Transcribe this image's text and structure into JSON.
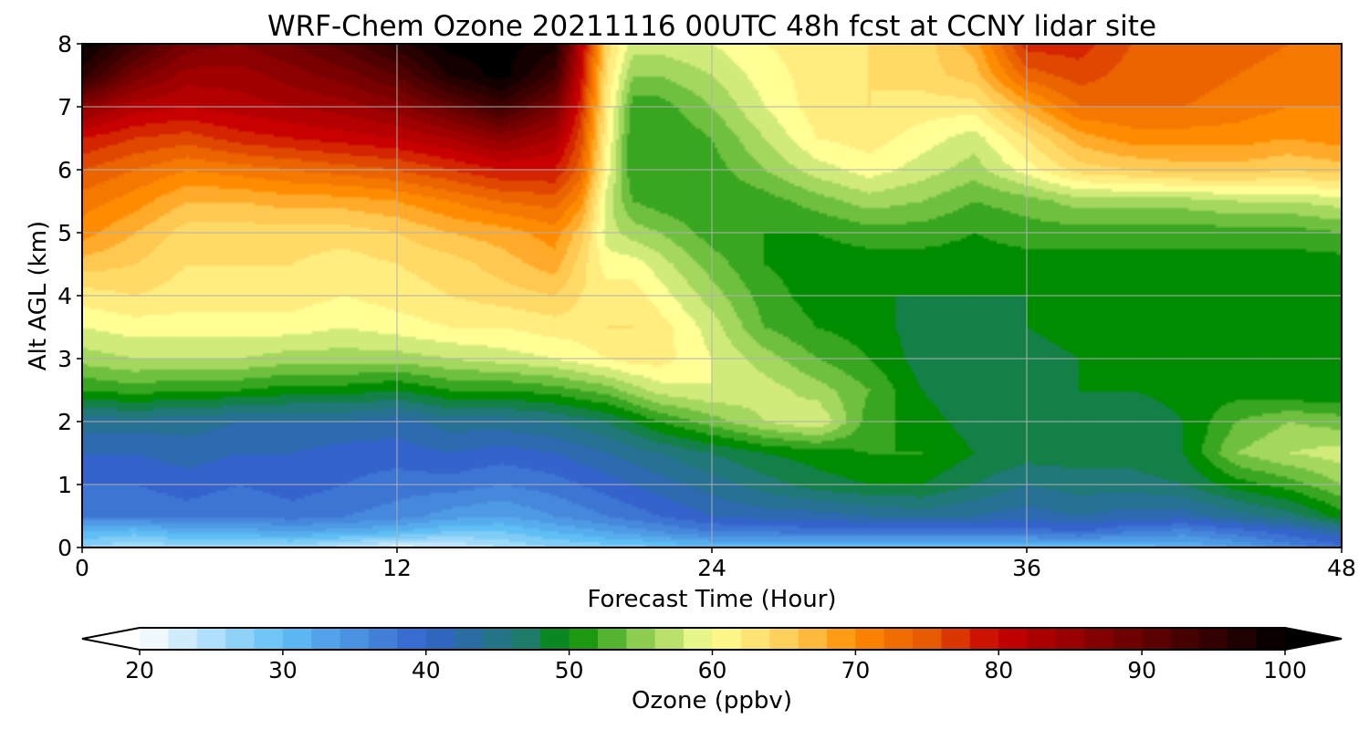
{
  "chart_data": {
    "type": "heatmap",
    "title": "WRF-Chem Ozone  20211116 00UTC 48h fcst at CCNY lidar site",
    "xlabel": "Forecast Time (Hour)",
    "ylabel": "Alt AGL (km)",
    "xlim": [
      0,
      48
    ],
    "ylim": [
      0,
      8
    ],
    "xticks": [
      0,
      12,
      24,
      36,
      48
    ],
    "yticks": [
      0,
      1,
      2,
      3,
      4,
      5,
      6,
      7,
      8
    ],
    "grid": true,
    "colorbar": {
      "label": "Ozone  (ppbv)",
      "range": [
        20,
        100
      ],
      "ticks": [
        20,
        30,
        40,
        50,
        60,
        70,
        80,
        90,
        100
      ],
      "extend": "both",
      "colormap": [
        [
          20,
          "#ffffff"
        ],
        [
          30,
          "#5fbff5"
        ],
        [
          40,
          "#3463cc"
        ],
        [
          47,
          "#1d7b6a"
        ],
        [
          50,
          "#008c00"
        ],
        [
          55,
          "#8ccd50"
        ],
        [
          60,
          "#ffff96"
        ],
        [
          66,
          "#ffc850"
        ],
        [
          70,
          "#ff8c00"
        ],
        [
          75,
          "#e65a00"
        ],
        [
          80,
          "#c80000"
        ],
        [
          88,
          "#780000"
        ],
        [
          100,
          "#000000"
        ]
      ]
    },
    "x": [
      0,
      2,
      4,
      6,
      8,
      10,
      12,
      14,
      16,
      18,
      19,
      20,
      21,
      22,
      24,
      26,
      28,
      30,
      32,
      34,
      36,
      38,
      40,
      42,
      44,
      46,
      48
    ],
    "y": [
      0,
      0.25,
      0.5,
      1,
      1.5,
      2,
      2.5,
      3,
      3.5,
      4,
      4.5,
      5,
      5.5,
      6,
      6.5,
      7,
      7.5,
      8
    ],
    "values": [
      [
        27,
        25,
        26,
        26,
        26,
        24,
        22,
        23,
        25,
        27,
        27,
        28,
        28,
        29,
        30,
        30,
        30,
        30,
        30,
        30,
        30,
        30,
        30,
        31,
        33,
        36,
        38
      ],
      [
        31,
        30,
        32,
        32,
        33,
        32,
        31,
        29,
        29,
        31,
        32,
        33,
        34,
        35,
        37,
        37,
        38,
        38,
        38,
        38,
        38,
        39,
        37,
        36,
        38,
        40,
        43
      ],
      [
        37,
        37,
        38,
        37,
        38,
        37,
        36,
        34,
        33,
        35,
        36,
        37,
        38,
        39,
        41,
        42,
        42,
        43,
        44,
        43,
        42,
        43,
        42,
        42,
        44,
        46,
        50
      ],
      [
        39,
        39,
        40,
        39,
        40,
        39,
        38,
        38,
        37,
        38,
        39,
        40,
        41,
        42,
        44,
        46,
        48,
        49,
        49,
        47,
        45,
        46,
        46,
        47,
        50,
        52,
        55
      ],
      [
        41,
        41,
        42,
        41,
        41,
        40,
        40,
        41,
        40,
        41,
        42,
        43,
        44,
        45,
        47,
        49,
        50,
        51,
        51,
        49,
        48,
        48,
        48,
        49,
        55,
        57,
        58
      ],
      [
        44,
        44,
        44,
        43,
        43,
        43,
        42,
        44,
        44,
        45,
        46,
        47,
        49,
        51,
        54,
        57,
        59,
        52,
        50,
        48,
        49,
        48,
        47,
        49,
        53,
        55,
        54
      ],
      [
        51,
        52,
        51,
        51,
        50,
        50,
        49,
        51,
        51,
        52,
        53,
        54,
        56,
        58,
        59,
        58,
        56,
        53,
        49,
        47,
        48,
        49,
        49,
        50,
        50,
        49,
        49
      ],
      [
        56,
        57,
        57,
        57,
        56,
        56,
        56,
        57,
        58,
        59,
        60,
        61,
        62,
        62,
        59,
        56,
        53,
        51,
        48,
        47,
        48,
        49,
        49,
        49,
        49,
        49,
        49
      ],
      [
        59,
        60,
        60,
        60,
        60,
        59,
        60,
        61,
        61,
        62,
        62,
        63,
        63,
        62,
        58,
        53,
        51,
        50,
        48,
        48,
        49,
        50,
        50,
        49,
        49,
        49,
        49
      ],
      [
        62,
        63,
        62,
        62,
        62,
        61,
        62,
        63,
        64,
        65,
        63,
        62,
        62,
        60,
        56,
        52,
        50,
        49,
        49,
        49,
        49,
        49,
        49,
        49,
        49,
        49,
        49
      ],
      [
        66,
        65,
        63,
        63,
        63,
        62,
        63,
        64,
        66,
        68,
        64,
        60,
        60,
        58,
        54,
        51,
        50,
        50,
        50,
        50,
        50,
        50,
        50,
        50,
        50,
        50,
        50
      ],
      [
        70,
        67,
        64,
        64,
        64,
        64,
        65,
        67,
        68,
        70,
        66,
        58,
        56,
        55,
        52,
        51,
        51,
        52,
        52,
        51,
        52,
        52,
        52,
        52,
        52,
        52,
        53
      ],
      [
        72,
        70,
        67,
        67,
        68,
        68,
        69,
        71,
        73,
        74,
        70,
        58,
        53,
        52,
        51,
        52,
        54,
        56,
        55,
        53,
        54,
        56,
        56,
        56,
        57,
        57,
        58
      ],
      [
        75,
        73,
        71,
        72,
        73,
        74,
        75,
        77,
        79,
        79,
        74,
        60,
        51,
        51,
        52,
        55,
        58,
        60,
        58,
        56,
        60,
        64,
        65,
        66,
        66,
        65,
        66
      ],
      [
        79,
        77,
        76,
        78,
        79,
        80,
        81,
        83,
        86,
        83,
        76,
        61,
        51,
        51,
        53,
        57,
        61,
        62,
        60,
        58,
        63,
        68,
        70,
        70,
        70,
        69,
        70
      ],
      [
        86,
        82,
        81,
        82,
        83,
        84,
        86,
        90,
        94,
        88,
        78,
        62,
        52,
        52,
        55,
        59,
        62,
        63,
        62,
        62,
        68,
        73,
        73,
        73,
        72,
        71,
        71
      ],
      [
        96,
        88,
        84,
        84,
        86,
        88,
        91,
        97,
        100,
        94,
        80,
        63,
        55,
        55,
        57,
        60,
        62,
        63,
        64,
        66,
        74,
        76,
        74,
        74,
        73,
        72,
        72
      ],
      [
        100,
        94,
        88,
        87,
        89,
        92,
        96,
        100,
        100,
        98,
        82,
        64,
        58,
        58,
        59,
        61,
        62,
        63,
        64,
        68,
        78,
        78,
        75,
        75,
        74,
        73,
        73
      ]
    ]
  }
}
